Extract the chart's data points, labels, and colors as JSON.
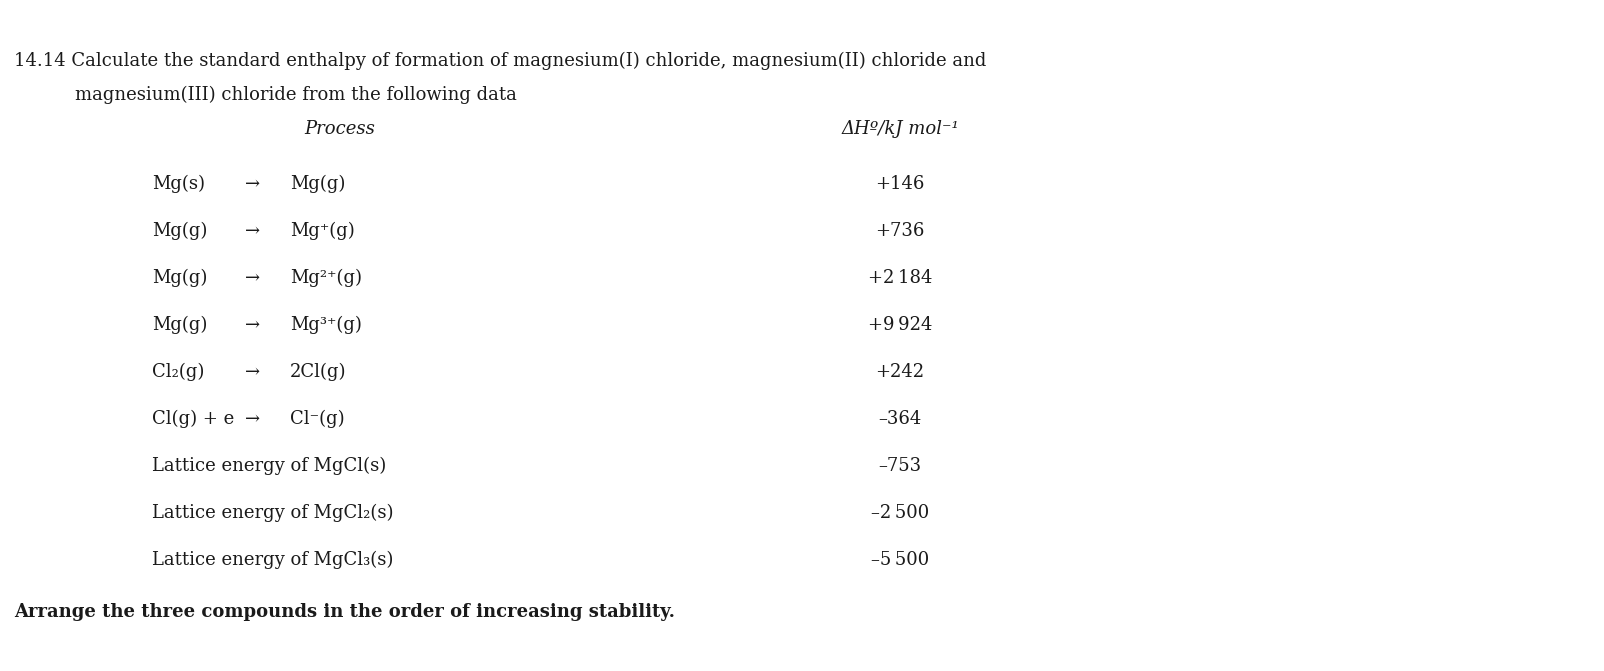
{
  "title_line1": "14.14 Calculate the standard enthalpy of formation of magnesium(I) chloride, magnesium(II) chloride and",
  "title_line2": "magnesium(III) chloride from the following data",
  "col1_header": "Process",
  "col2_header": "ΔHº/kJ mol⁻¹",
  "rows": [
    {
      "left": "Mg(s)",
      "arrow": "→",
      "right": "Mg(g)",
      "value": "+146"
    },
    {
      "left": "Mg(g)",
      "arrow": "→",
      "right": "Mg⁺(g)",
      "value": "+736"
    },
    {
      "left": "Mg(g)",
      "arrow": "→",
      "right": "Mg²⁺(g)",
      "value": "+2 184"
    },
    {
      "left": "Mg(g)",
      "arrow": "→",
      "right": "Mg³⁺(g)",
      "value": "+9 924"
    },
    {
      "left": "Cl₂(g)",
      "arrow": "→",
      "right": "2Cl(g)",
      "value": "+242"
    },
    {
      "left": "Cl(g) + e",
      "arrow": "→",
      "right": "Cl⁻(g)",
      "value": "–364"
    },
    {
      "left": "Lattice energy of MgCl(s)",
      "arrow": "",
      "right": "",
      "value": "–753"
    },
    {
      "left": "Lattice energy of MgCl₂(s)",
      "arrow": "",
      "right": "",
      "value": "–2 500"
    },
    {
      "left": "Lattice energy of MgCl₃(s)",
      "arrow": "",
      "right": "",
      "value": "–5 500"
    }
  ],
  "footer": "Arrange the three compounds in the order of increasing stability.",
  "bg_color": "#ffffff",
  "text_color": "#1a1a1a",
  "font_size_title": 13.0,
  "font_size_header": 13.0,
  "font_size_row": 13.0,
  "font_size_footer": 13.0
}
